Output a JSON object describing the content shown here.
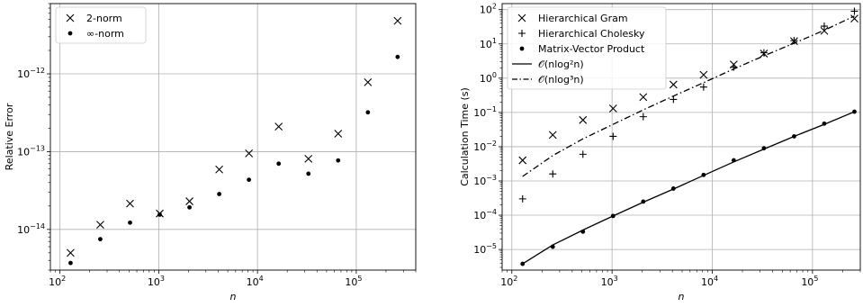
{
  "chart_data": [
    {
      "type": "scatter",
      "xlabel": "n",
      "ylabel": "Relative Error",
      "xscale": "log",
      "yscale": "log",
      "xlim": [
        80,
        400000
      ],
      "ylim": [
        3e-15,
        8e-12
      ],
      "grid": true,
      "legend": "top-left",
      "x": [
        128,
        256,
        512,
        1024,
        2048,
        4096,
        8192,
        16384,
        32768,
        65536,
        131072,
        262144
      ],
      "series": [
        {
          "name": "2-norm",
          "marker": "x",
          "values": [
            5e-15,
            1.15e-14,
            2.15e-14,
            1.6e-14,
            2.3e-14,
            5.9e-14,
            9.5e-14,
            2.1e-13,
            8.1e-14,
            1.7e-13,
            7.8e-13,
            4.8e-12
          ]
        },
        {
          "name": "∞-norm",
          "marker": "dot",
          "values": [
            3.7e-15,
            7.5e-15,
            1.22e-14,
            1.55e-14,
            1.92e-14,
            2.85e-14,
            4.35e-14,
            7e-14,
            5.2e-14,
            7.7e-14,
            3.2e-13,
            1.65e-12
          ]
        }
      ],
      "xticks": [
        {
          "label": "10",
          "exp": "2",
          "v": 100
        },
        {
          "label": "10",
          "exp": "3",
          "v": 1000
        },
        {
          "label": "10",
          "exp": "4",
          "v": 10000
        },
        {
          "label": "10",
          "exp": "5",
          "v": 100000
        }
      ],
      "yticks": [
        {
          "label": "10",
          "exp": "−14",
          "v": 1e-14
        },
        {
          "label": "10",
          "exp": "−13",
          "v": 1e-13
        },
        {
          "label": "10",
          "exp": "−12",
          "v": 1e-12
        }
      ]
    },
    {
      "type": "scatter",
      "xlabel": "n",
      "ylabel": "Calculation Time (s)",
      "xscale": "log",
      "yscale": "log",
      "xlim": [
        80,
        300000
      ],
      "ylim": [
        2.5e-06,
        150
      ],
      "grid": true,
      "legend": "top-left",
      "x": [
        128,
        256,
        512,
        1024,
        2048,
        4096,
        8192,
        16384,
        32768,
        65536,
        131072,
        262144
      ],
      "series": [
        {
          "name": "Hierarchical Gram",
          "marker": "x",
          "values": [
            0.004,
            0.022,
            0.06,
            0.13,
            0.28,
            0.65,
            1.25,
            2.5,
            5.2,
            12,
            24,
            55
          ]
        },
        {
          "name": "Hierarchical Cholesky",
          "marker": "plus",
          "values": [
            0.0003,
            0.0016,
            0.006,
            0.02,
            0.075,
            0.24,
            0.55,
            2.1,
            5.5,
            12.5,
            33,
            90
          ]
        },
        {
          "name": "Matrix-Vector Product",
          "marker": "dot",
          "values": [
            3.8e-06,
            1.2e-05,
            3.3e-05,
            9.5e-05,
            0.00025,
            0.0006,
            0.0015,
            0.004,
            0.009,
            0.02,
            0.047,
            0.105
          ]
        }
      ],
      "lines": [
        {
          "name": "𝒪(nlog²n)",
          "style": "solid",
          "values": [
            3.8e-06,
            1.35e-05,
            3.7e-05,
            9.5e-05,
            0.00024,
            0.00058,
            0.00145,
            0.0036,
            0.0085,
            0.02,
            0.045,
            0.105
          ]
        },
        {
          "name": "𝒪(nlog³n)",
          "style": "dashdot",
          "values": [
            0.00135,
            0.0055,
            0.017,
            0.045,
            0.118,
            0.3,
            0.74,
            1.86,
            4.5,
            10.5,
            25,
            65
          ]
        }
      ],
      "xticks": [
        {
          "label": "10",
          "exp": "2",
          "v": 100
        },
        {
          "label": "10",
          "exp": "3",
          "v": 1000
        },
        {
          "label": "10",
          "exp": "4",
          "v": 10000
        },
        {
          "label": "10",
          "exp": "5",
          "v": 100000
        }
      ],
      "yticks": [
        {
          "label": "10",
          "exp": "−5",
          "v": 1e-05
        },
        {
          "label": "10",
          "exp": "−4",
          "v": 0.0001
        },
        {
          "label": "10",
          "exp": "−3",
          "v": 0.001
        },
        {
          "label": "10",
          "exp": "−2",
          "v": 0.01
        },
        {
          "label": "10",
          "exp": "−1",
          "v": 0.1
        },
        {
          "label": "10",
          "exp": "0",
          "v": 1
        },
        {
          "label": "10",
          "exp": "1",
          "v": 10
        },
        {
          "label": "10",
          "exp": "2",
          "v": 100
        }
      ]
    }
  ]
}
